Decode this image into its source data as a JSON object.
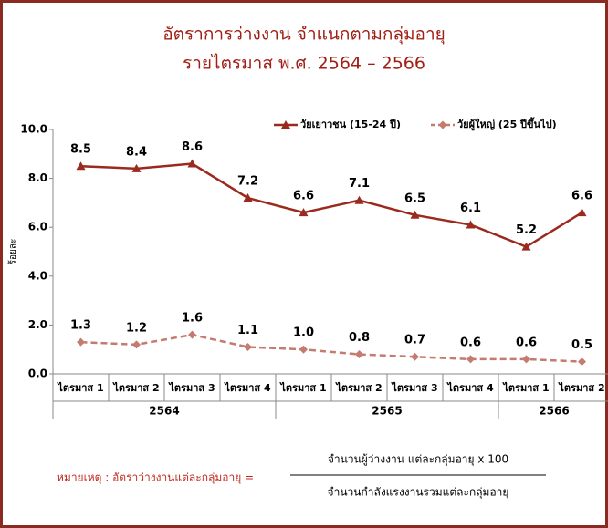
{
  "chart_data": {
    "type": "line",
    "title": "อัตราการว่างงาน จำแนกตามกลุ่มอายุ",
    "subtitle": "รายไตรมาส พ.ศ. 2564 – 2566",
    "y_label": "ร้อยละ",
    "categories": [
      "ไตรมาส 1",
      "ไตรมาส 2",
      "ไตรมาส 3",
      "ไตรมาส 4",
      "ไตรมาส 1",
      "ไตรมาส 2",
      "ไตรมาส 3",
      "ไตรมาส 4",
      "ไตรมาส 1",
      "ไตรมาส 2"
    ],
    "groups": [
      "2564",
      null,
      null,
      null,
      "2565",
      null,
      null,
      null,
      "2566",
      null
    ],
    "series": [
      {
        "name": "วัยเยาวชน (15-24 ปี)",
        "color": "#9b2a1e",
        "dashed": false,
        "marker": "triangle",
        "values": [
          8.5,
          8.4,
          8.6,
          7.2,
          6.6,
          7.1,
          6.5,
          6.1,
          5.2,
          6.6
        ]
      },
      {
        "name": "วัยผู้ใหญ่ (25 ปีขึ้นไป)",
        "color": "#c47b70",
        "dashed": true,
        "marker": "diamond",
        "values": [
          1.3,
          1.2,
          1.6,
          1.1,
          1,
          0.8,
          0.7,
          0.6,
          0.6,
          0.5
        ],
        "value_labels": [
          "1.3",
          "1.2",
          "1.6",
          "1.1",
          "1.0",
          "0.8",
          "0.7",
          "0.6",
          "0.6",
          "0.5"
        ]
      }
    ],
    "ylim": [
      0,
      10
    ],
    "yticks": [
      {
        "value": 0,
        "label": "0.0"
      },
      {
        "value": 2,
        "label": "2.0"
      },
      {
        "value": 4,
        "label": "4.0"
      },
      {
        "value": 6,
        "label": "6.0"
      },
      {
        "value": 8,
        "label": "8.0"
      },
      {
        "value": 10,
        "label": "10.0"
      }
    ],
    "grid": false,
    "note": {
      "label": "หมายเหตุ : อัตราว่างงานแต่ละกลุ่มอายุ =",
      "numerator": "จำนวนผู้ว่างงาน แต่ละกลุ่มอายุ x 100",
      "denominator": "จำนวนกำลังแรงงานรวมแต่ละกลุ่มอายุ"
    }
  }
}
